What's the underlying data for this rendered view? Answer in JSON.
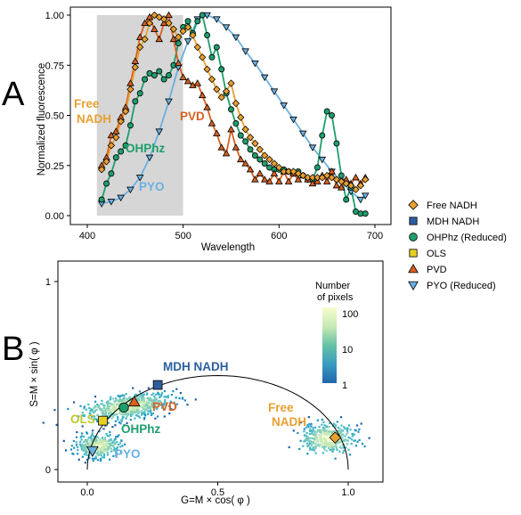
{
  "colors": {
    "nadh": "#e8a030",
    "mdh": "#2c5f9e",
    "ohphz": "#1e9e6c",
    "ols": "#e6d020",
    "pvd": "#d86020",
    "pyo": "#6ab0e0",
    "shade": "#d6d6d6"
  },
  "panel_a": {
    "label": "A",
    "ylabel": "Normalized fluorescence",
    "xlabel": "Wavelength",
    "xticks": [
      400,
      500,
      600,
      700
    ],
    "yticks": [
      "0.00",
      "0.25",
      "0.50",
      "0.75",
      "1.00"
    ],
    "annotations": {
      "nadh_1": "Free",
      "nadh_2": "NADH",
      "ohphz": "OHPhz",
      "pyo": "PYO",
      "pvd": "PVD"
    }
  },
  "panel_b": {
    "label": "B",
    "ylabel": "S=M × sin( φ )",
    "xlabel": "G=M × cos( φ )",
    "xticks": [
      "0.0",
      "0.5",
      "1.0"
    ],
    "yticks": [
      "0",
      "1"
    ],
    "colorbar_title_1": "Number",
    "colorbar_title_2": "of pixels",
    "colorbar_ticks": [
      "100",
      "10",
      "1"
    ],
    "annotations": {
      "mdh": "MDH NADH",
      "pvd": "PVD",
      "ols": "OLS",
      "ohphz": "OHPhz",
      "pyo": "PYO",
      "nadh_1": "Free",
      "nadh_2": "NADH"
    }
  },
  "legend": [
    {
      "label": "Free NADH",
      "shape": "diamond",
      "color_key": "nadh"
    },
    {
      "label": "MDH NADH",
      "shape": "square",
      "color_key": "mdh"
    },
    {
      "label": "OHPhz (Reduced)",
      "shape": "circle",
      "color_key": "ohphz"
    },
    {
      "label": "OLS",
      "shape": "square",
      "color_key": "ols"
    },
    {
      "label": "PVD",
      "shape": "triangle-up",
      "color_key": "pvd"
    },
    {
      "label": "PYO (Reduced)",
      "shape": "triangle-down",
      "color_key": "pyo"
    }
  ],
  "chart_data": [
    {
      "type": "line",
      "xlabel": "Wavelength",
      "ylabel": "Normalized fluorescence",
      "xlim": [
        380,
        700
      ],
      "ylim": [
        0,
        1.02
      ],
      "shaded_region": [
        410,
        500
      ],
      "grid": false,
      "series": [
        {
          "name": "Free NADH",
          "color_key": "nadh",
          "marker": "diamond",
          "x": [
            415,
            420,
            425,
            430,
            435,
            440,
            445,
            450,
            455,
            460,
            465,
            470,
            475,
            480,
            485,
            490,
            495,
            500,
            505,
            510,
            515,
            520,
            525,
            530,
            535,
            540,
            545,
            550,
            555,
            560,
            565,
            570,
            575,
            580,
            585,
            590,
            595,
            600,
            605,
            610,
            615,
            620,
            625,
            630,
            635,
            640,
            645,
            650,
            655,
            660,
            665,
            670,
            675,
            680,
            685,
            690
          ],
          "y": [
            0.23,
            0.27,
            0.35,
            0.39,
            0.47,
            0.52,
            0.63,
            0.74,
            0.84,
            0.88,
            0.96,
            1.0,
            0.99,
            0.98,
            0.96,
            0.93,
            0.89,
            0.92,
            0.94,
            0.9,
            0.84,
            0.79,
            0.73,
            0.68,
            0.63,
            0.59,
            0.62,
            0.66,
            0.56,
            0.49,
            0.43,
            0.39,
            0.36,
            0.33,
            0.3,
            0.28,
            0.26,
            0.24,
            0.22,
            0.22,
            0.22,
            0.21,
            0.2,
            0.19,
            0.19,
            0.19,
            0.19,
            0.2,
            0.19,
            0.18,
            0.17,
            0.16,
            0.15,
            0.13,
            0.15,
            0.18
          ]
        },
        {
          "name": "PVD",
          "color_key": "pvd",
          "marker": "triangle-up",
          "x": [
            415,
            420,
            425,
            430,
            435,
            440,
            445,
            450,
            455,
            460,
            465,
            470,
            475,
            480,
            485,
            490,
            495,
            500,
            505,
            510,
            515,
            520,
            525,
            530,
            535,
            540,
            545,
            550,
            555,
            560,
            565,
            570,
            575,
            580,
            585,
            590,
            595,
            600,
            605,
            610,
            615,
            620,
            625,
            630,
            635,
            640,
            645,
            650,
            655,
            660,
            665,
            670,
            675,
            680,
            685,
            690
          ],
          "y": [
            0.25,
            0.29,
            0.4,
            0.42,
            0.49,
            0.54,
            0.66,
            0.77,
            0.89,
            0.96,
            0.99,
            0.93,
            0.88,
            0.96,
            1.0,
            0.88,
            0.76,
            0.69,
            0.67,
            0.65,
            0.66,
            0.6,
            0.54,
            0.46,
            0.41,
            0.34,
            0.31,
            0.43,
            0.34,
            0.28,
            0.26,
            0.23,
            0.18,
            0.21,
            0.18,
            0.17,
            0.21,
            0.17,
            0.22,
            0.17,
            0.21,
            0.18,
            0.2,
            0.18,
            0.16,
            0.17,
            0.2,
            0.17,
            0.22,
            0.15,
            0.14,
            0.18,
            0.16,
            0.19,
            0.16,
            0.19
          ]
        },
        {
          "name": "OHPhz (Reduced)",
          "color_key": "ohphz",
          "marker": "circle",
          "x": [
            415,
            420,
            425,
            430,
            435,
            440,
            445,
            450,
            455,
            460,
            465,
            470,
            475,
            480,
            485,
            490,
            495,
            500,
            505,
            510,
            515,
            520,
            525,
            530,
            535,
            540,
            545,
            550,
            555,
            560,
            565,
            570,
            575,
            580,
            585,
            590,
            595,
            600,
            605,
            610,
            615,
            620,
            625,
            630,
            635,
            640,
            645,
            650,
            655,
            660,
            665,
            670,
            675,
            680,
            685,
            690
          ],
          "y": [
            0.08,
            0.16,
            0.21,
            0.29,
            0.32,
            0.35,
            0.45,
            0.57,
            0.61,
            0.68,
            0.71,
            0.7,
            0.72,
            0.68,
            0.7,
            0.75,
            0.86,
            0.94,
            0.97,
            0.91,
            0.97,
            1.0,
            0.9,
            0.79,
            0.84,
            0.73,
            0.61,
            0.53,
            0.46,
            0.4,
            0.37,
            0.33,
            0.3,
            0.28,
            0.26,
            0.24,
            0.23,
            0.23,
            0.23,
            0.22,
            0.21,
            0.22,
            0.2,
            0.18,
            0.18,
            0.24,
            0.4,
            0.52,
            0.5,
            0.36,
            0.2,
            0.08,
            0.14,
            0.02,
            0.01,
            0.01
          ]
        },
        {
          "name": "PYO (Reduced)",
          "color_key": "pyo",
          "marker": "triangle-down",
          "x": [
            415,
            425,
            435,
            445,
            455,
            465,
            475,
            485,
            495,
            505,
            515,
            525,
            535,
            545,
            555,
            565,
            575,
            585,
            595,
            605,
            615,
            625,
            635,
            645,
            655,
            665,
            675,
            685,
            690
          ],
          "y": [
            0.06,
            0.07,
            0.09,
            0.13,
            0.19,
            0.29,
            0.42,
            0.57,
            0.74,
            0.87,
            0.98,
            1.0,
            0.98,
            0.94,
            0.89,
            0.82,
            0.76,
            0.69,
            0.62,
            0.55,
            0.48,
            0.41,
            0.34,
            0.28,
            0.22,
            0.17,
            0.12,
            0.08,
            0.1
          ]
        }
      ]
    },
    {
      "type": "scatter",
      "xlabel": "G=M × cos( φ )",
      "ylabel": "S=M × sin( φ )",
      "xlim": [
        -0.1,
        1.1
      ],
      "ylim": [
        0,
        1
      ],
      "colorbar": {
        "title": "Number of pixels",
        "scale": "log",
        "range": [
          1,
          100
        ]
      },
      "points": [
        {
          "name": "Free NADH",
          "color_key": "nadh",
          "marker": "diamond",
          "x": 0.95,
          "y": 0.17
        },
        {
          "name": "MDH NADH",
          "color_key": "mdh",
          "marker": "square",
          "x": 0.27,
          "y": 0.45
        },
        {
          "name": "OHPhz (Reduced)",
          "color_key": "ohphz",
          "marker": "circle",
          "x": 0.14,
          "y": 0.33
        },
        {
          "name": "OLS",
          "color_key": "ols",
          "marker": "square",
          "x": 0.06,
          "y": 0.26
        },
        {
          "name": "PVD",
          "color_key": "pvd",
          "marker": "triangle-up",
          "x": 0.18,
          "y": 0.36
        },
        {
          "name": "PYO (Reduced)",
          "color_key": "pyo",
          "marker": "triangle-down",
          "x": 0.02,
          "y": 0.1
        }
      ],
      "pixel_clouds": [
        {
          "center": [
            0.15,
            0.34
          ],
          "spread": [
            0.08,
            0.03
          ]
        },
        {
          "center": [
            0.04,
            0.13
          ],
          "spread": [
            0.04,
            0.03
          ]
        },
        {
          "center": [
            0.92,
            0.17
          ],
          "spread": [
            0.05,
            0.04
          ]
        }
      ]
    }
  ]
}
